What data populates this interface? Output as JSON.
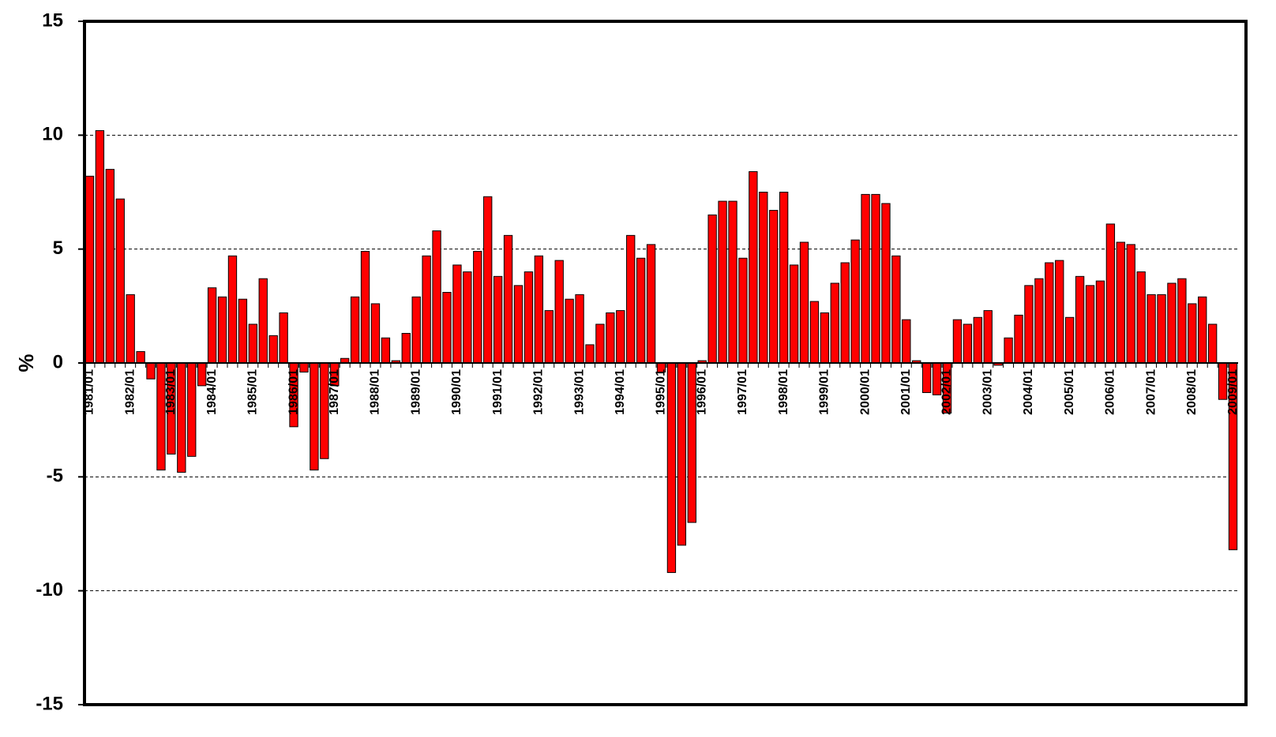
{
  "chart_data": {
    "type": "bar",
    "y_label": "%",
    "categories": [
      "1981/01",
      null,
      null,
      null,
      "1982/01",
      null,
      null,
      null,
      "1983/01",
      null,
      null,
      null,
      "1984/01",
      null,
      null,
      null,
      "1985/01",
      null,
      null,
      null,
      "1986/01",
      null,
      null,
      null,
      "1987/01",
      null,
      null,
      null,
      "1988/01",
      null,
      null,
      null,
      "1989/01",
      null,
      null,
      null,
      "1990/01",
      null,
      null,
      null,
      "1991/01",
      null,
      null,
      null,
      "1992/01",
      null,
      null,
      null,
      "1993/01",
      null,
      null,
      null,
      "1994/01",
      null,
      null,
      null,
      "1995/01",
      null,
      null,
      null,
      "1996/01",
      null,
      null,
      null,
      "1997/01",
      null,
      null,
      null,
      "1998/01",
      null,
      null,
      null,
      "1999/01",
      null,
      null,
      null,
      "2000/01",
      null,
      null,
      null,
      "2001/01",
      null,
      null,
      null,
      "2002/01",
      null,
      null,
      null,
      "2003/01",
      null,
      null,
      null,
      "2004/01",
      null,
      null,
      null,
      "2005/01",
      null,
      null,
      null,
      "2006/01",
      null,
      null,
      null,
      "2007/01",
      null,
      null,
      null,
      "2008/01",
      null,
      null,
      null,
      "2009/01"
    ],
    "values": [
      8.2,
      10.2,
      8.5,
      7.2,
      3.0,
      0.5,
      -0.7,
      -4.7,
      -4.0,
      -4.8,
      -4.1,
      -1.0,
      3.3,
      2.9,
      4.7,
      2.8,
      1.7,
      3.7,
      1.2,
      2.2,
      -2.8,
      -0.4,
      -4.7,
      -4.2,
      -1.0,
      0.2,
      2.9,
      4.9,
      2.6,
      1.1,
      0.1,
      1.3,
      2.9,
      4.7,
      5.8,
      3.1,
      4.3,
      4.0,
      4.9,
      7.3,
      3.8,
      5.6,
      3.4,
      4.0,
      4.7,
      2.3,
      4.5,
      2.8,
      3.0,
      0.8,
      1.7,
      2.2,
      2.3,
      5.6,
      4.6,
      5.2,
      -0.4,
      -9.2,
      -8.0,
      -7.0,
      0.1,
      6.5,
      7.1,
      7.1,
      4.6,
      8.4,
      7.5,
      6.7,
      7.5,
      4.3,
      5.3,
      2.7,
      2.2,
      3.5,
      4.4,
      5.4,
      7.4,
      7.4,
      7.0,
      4.7,
      1.9,
      0.1,
      -1.3,
      -1.4,
      -2.2,
      1.9,
      1.7,
      2.0,
      2.3,
      -0.1,
      1.1,
      2.1,
      3.4,
      3.7,
      4.4,
      4.5,
      2.0,
      3.8,
      3.4,
      3.6,
      6.1,
      5.3,
      5.2,
      4.0,
      3.0,
      3.0,
      3.5,
      3.7,
      2.6,
      2.9,
      1.7,
      -1.6,
      -8.2
    ],
    "color": "#ff0000",
    "ylim": [
      -15,
      15
    ],
    "yticks": [
      -15,
      -10,
      -5,
      0,
      5,
      10,
      15
    ],
    "grid": true
  }
}
